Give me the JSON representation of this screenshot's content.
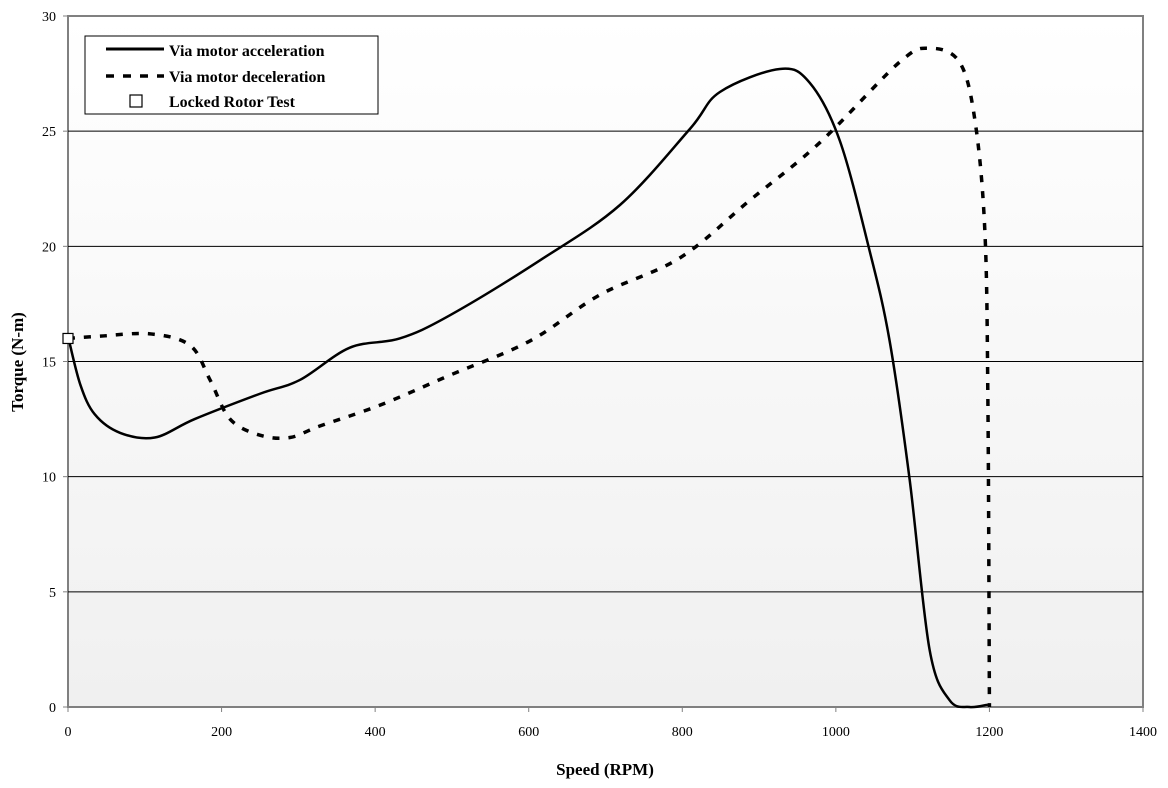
{
  "chart_data": {
    "type": "line",
    "title": "",
    "xlabel": "Speed (RPM)",
    "ylabel": "Torque (N-m)",
    "xlim": [
      0,
      1400
    ],
    "ylim": [
      0,
      30
    ],
    "xticks": [
      0,
      200,
      400,
      600,
      800,
      1000,
      1200,
      1400
    ],
    "yticks": [
      0,
      5,
      10,
      15,
      20,
      25,
      30
    ],
    "grid": "horizontal",
    "legend_position": "top-left",
    "series": [
      {
        "name": "Via motor acceleration",
        "style": "solid",
        "color": "#000000",
        "x": [
          0,
          16,
          35,
          68,
          113,
          165,
          250,
          302,
          367,
          432,
          497,
          615,
          719,
          810,
          849,
          927,
          966,
          1005,
          1044,
          1070,
          1096,
          1122,
          1148,
          1174,
          1198
        ],
        "y": [
          16.1,
          14.0,
          12.7,
          11.9,
          11.7,
          12.5,
          13.6,
          14.2,
          15.6,
          16.0,
          17.0,
          19.4,
          21.8,
          25.1,
          26.7,
          27.7,
          27.1,
          24.6,
          19.8,
          15.9,
          9.9,
          2.5,
          0.3,
          0.0,
          0.1
        ]
      },
      {
        "name": "Via motor deceleration",
        "style": "dashed",
        "color": "#000000",
        "x": [
          0,
          42,
          107,
          159,
          185,
          211,
          250,
          289,
          328,
          406,
          497,
          602,
          693,
          797,
          888,
          979,
          1083,
          1122,
          1161,
          1181,
          1194,
          1198,
          1200
        ],
        "y": [
          16.0,
          16.1,
          16.2,
          15.7,
          14.2,
          12.5,
          11.8,
          11.7,
          12.2,
          13.1,
          14.4,
          15.9,
          17.9,
          19.5,
          22.0,
          24.5,
          28.0,
          28.6,
          28.0,
          25.5,
          20.7,
          13.3,
          0.0
        ]
      },
      {
        "name": "Locked Rotor Test",
        "style": "marker-square",
        "color": "#000000",
        "x": [
          0
        ],
        "y": [
          16.0
        ]
      }
    ]
  }
}
